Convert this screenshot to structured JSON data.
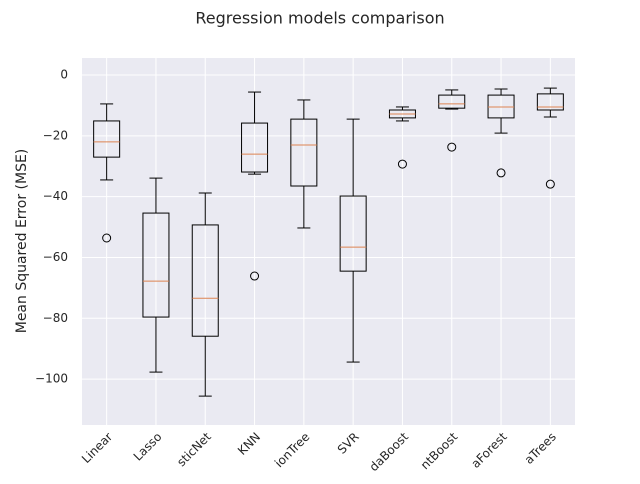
{
  "chart_data": {
    "type": "box",
    "title": "Regression models comparison",
    "y_label": "Mean Squared Error (MSE)",
    "categories": [
      "Linear",
      "Lasso",
      "sticNet",
      "KNN",
      "ionTree",
      "SVR",
      "daBoost",
      "ntBoost",
      "aForest",
      "aTrees"
    ],
    "boxes": [
      {
        "whislo": -34.5,
        "q1": -27.0,
        "med": -22.0,
        "q3": -15.1,
        "whishi": -9.5,
        "fliers": [
          -53.6
        ]
      },
      {
        "whislo": -97.7,
        "q1": -79.6,
        "med": -67.8,
        "q3": -45.4,
        "whishi": -33.9,
        "fliers": []
      },
      {
        "whislo": -105.6,
        "q1": -85.9,
        "med": -73.4,
        "q3": -49.3,
        "whishi": -38.8,
        "fliers": []
      },
      {
        "whislo": -32.6,
        "q1": -31.9,
        "med": -26.0,
        "q3": -15.8,
        "whishi": -5.6,
        "fliers": [
          -66.1
        ]
      },
      {
        "whislo": -50.3,
        "q1": -36.5,
        "med": -23.0,
        "q3": -14.5,
        "whishi": -8.2,
        "fliers": []
      },
      {
        "whislo": -94.4,
        "q1": -64.5,
        "med": -56.6,
        "q3": -39.8,
        "whishi": -14.5,
        "fliers": []
      },
      {
        "whislo": -15.1,
        "q1": -14.1,
        "med": -12.8,
        "q3": -11.5,
        "whishi": -10.5,
        "fliers": [
          -29.3
        ]
      },
      {
        "whislo": -11.2,
        "q1": -10.9,
        "med": -9.5,
        "q3": -6.6,
        "whishi": -4.9,
        "fliers": [
          -23.7
        ]
      },
      {
        "whislo": -19.1,
        "q1": -14.1,
        "med": -10.5,
        "q3": -6.6,
        "whishi": -4.6,
        "fliers": [
          -32.2
        ]
      },
      {
        "whislo": -13.8,
        "q1": -11.5,
        "med": -10.5,
        "q3": -6.2,
        "whishi": -4.3,
        "fliers": [
          -35.9
        ]
      }
    ],
    "box_color": "#000000",
    "median_color": "#dd8452",
    "ylim": [
      -115.1,
      5.6
    ],
    "yticks": [
      0,
      {
        "value": -20,
        "label": "−20"
      },
      {
        "value": -40,
        "label": "−40"
      },
      {
        "value": -60,
        "label": "−60"
      },
      {
        "value": -80,
        "label": "−80"
      },
      {
        "value": -100,
        "label": "−100"
      }
    ],
    "grid": true
  }
}
